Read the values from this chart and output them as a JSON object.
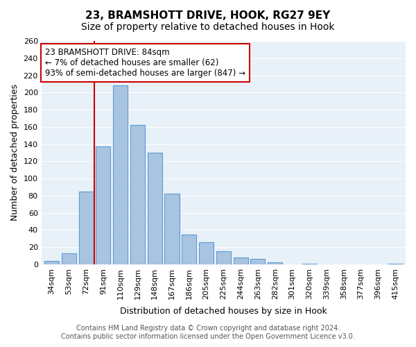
{
  "title": "23, BRAMSHOTT DRIVE, HOOK, RG27 9EY",
  "subtitle": "Size of property relative to detached houses in Hook",
  "xlabel": "Distribution of detached houses by size in Hook",
  "ylabel": "Number of detached properties",
  "bar_labels": [
    "34sqm",
    "53sqm",
    "72sqm",
    "91sqm",
    "110sqm",
    "129sqm",
    "148sqm",
    "167sqm",
    "186sqm",
    "205sqm",
    "225sqm",
    "244sqm",
    "263sqm",
    "282sqm",
    "301sqm",
    "320sqm",
    "339sqm",
    "358sqm",
    "377sqm",
    "396sqm",
    "415sqm"
  ],
  "bar_values": [
    4,
    13,
    85,
    137,
    208,
    162,
    130,
    82,
    35,
    26,
    15,
    8,
    6,
    2,
    0,
    1,
    0,
    0,
    0,
    0,
    1
  ],
  "bar_color": "#a8c4e0",
  "bar_edge_color": "#5b9bd5",
  "vline_pos": 2.5,
  "vline_color": "#cc0000",
  "annotation_text": "23 BRAMSHOTT DRIVE: 84sqm\n← 7% of detached houses are smaller (62)\n93% of semi-detached houses are larger (847) →",
  "annotation_box_color": "#ffffff",
  "annotation_box_edge": "#cc0000",
  "ylim": [
    0,
    260
  ],
  "yticks": [
    0,
    20,
    40,
    60,
    80,
    100,
    120,
    140,
    160,
    180,
    200,
    220,
    240,
    260
  ],
  "bg_color": "#e8f0f8",
  "footer_line1": "Contains HM Land Registry data © Crown copyright and database right 2024.",
  "footer_line2": "Contains public sector information licensed under the Open Government Licence v3.0.",
  "title_fontsize": 11,
  "subtitle_fontsize": 10,
  "axis_label_fontsize": 9,
  "tick_fontsize": 8,
  "annotation_fontsize": 8.5,
  "footer_fontsize": 7
}
